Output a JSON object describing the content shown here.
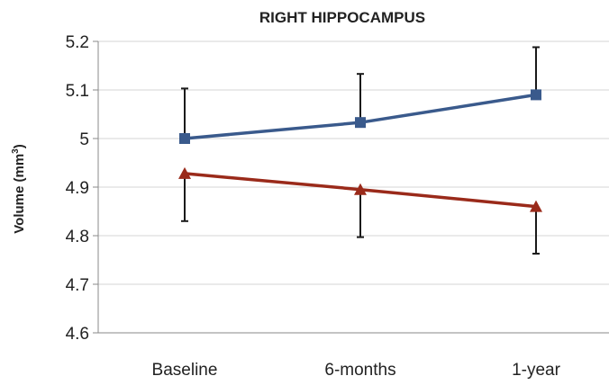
{
  "chart_data": {
    "type": "line",
    "title": "RIGHT HIPPOCAMPUS",
    "xlabel": "",
    "ylabel_text": "Volume (mm",
    "ylabel_sup": "3",
    "ylabel_close": ")",
    "categories": [
      "Baseline",
      "6-months",
      "1-year"
    ],
    "ylim": [
      4.6,
      5.2
    ],
    "yticks": [
      "4.6",
      "4.7",
      "4.8",
      "4.9",
      "5",
      "5.1",
      "5.2"
    ],
    "ytick_values": [
      4.6,
      4.7,
      4.8,
      4.9,
      5.0,
      5.1,
      5.2
    ],
    "grid": true,
    "legend": "none",
    "series": [
      {
        "marker": "square",
        "color": "#3a5a8c",
        "values": [
          5.0,
          5.033,
          5.09
        ],
        "error_upper": [
          5.103,
          5.133,
          5.188
        ],
        "error_lower": null
      },
      {
        "marker": "triangle",
        "color": "#9a2a1a",
        "values": [
          4.928,
          4.895,
          4.86
        ],
        "error_upper": null,
        "error_lower": [
          4.83,
          4.797,
          4.763
        ]
      }
    ],
    "errorbar_color": "#1a1a1a"
  }
}
